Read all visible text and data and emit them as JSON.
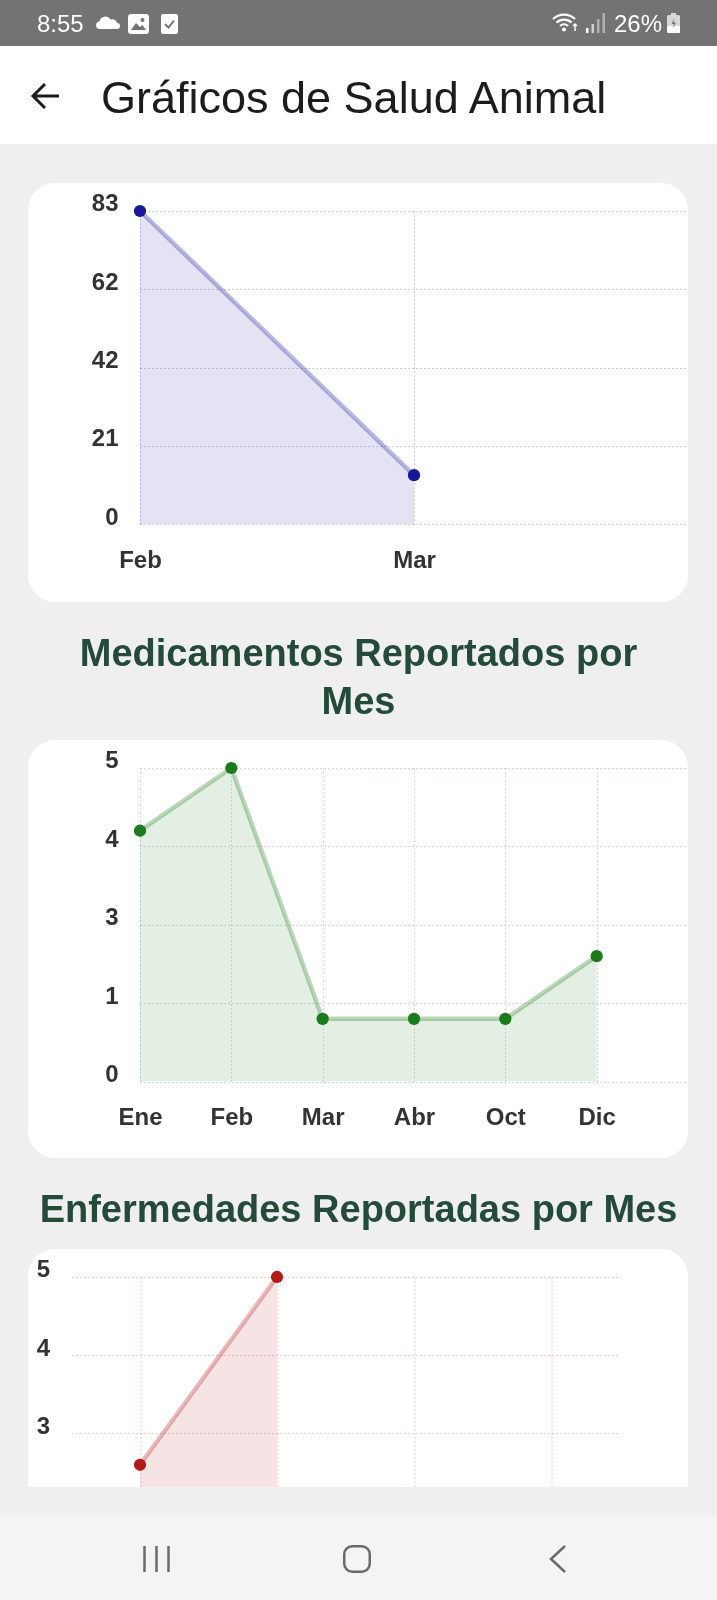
{
  "chart_data": [
    {
      "type": "area",
      "title": "Gráficos de Salud Animal",
      "annotations": [
        "8:55",
        "26%"
      ],
      "categories": [
        "Feb",
        "Mar"
      ],
      "series": [
        {
          "color": "#17179a",
          "values": [
            83,
            13
          ]
        }
      ],
      "ylim": [
        0,
        83
      ],
      "yticks": [
        0,
        {
          "value": 20.75,
          "label": "21"
        },
        {
          "value": 41.5,
          "label": "42"
        },
        {
          "value": 62.25,
          "label": "62"
        },
        83
      ],
      "grid": true,
      "marker": "circle"
    },
    {
      "type": "area",
      "title": "Medicamentos Reportados por Mes",
      "categories": [
        "Ene",
        "Feb",
        "Mar",
        "Abr",
        "Oct",
        "Dic"
      ],
      "series": [
        {
          "color": "#1b7a1b",
          "values": [
            4,
            5,
            1,
            1,
            1,
            2
          ]
        }
      ],
      "ylim": [
        0,
        5
      ],
      "yticks": [
        0,
        {
          "value": 1.25,
          "label": "1"
        },
        {
          "value": 2.5,
          "label": "3"
        },
        {
          "value": 3.75,
          "label": "4"
        },
        5
      ],
      "grid": true,
      "marker": "circle"
    },
    {
      "type": "area",
      "title": "Enfermedades Reportadas por Mes",
      "categories": [
        null,
        null,
        null,
        null
      ],
      "series": [
        {
          "color": "#b31b1b",
          "values": [
            2,
            5,
            null,
            null
          ]
        }
      ],
      "ylim": [
        1.64,
        5
      ],
      "yticks": [
        {
          "value": 2.5,
          "label": "3"
        },
        {
          "value": 3.75,
          "label": "4"
        },
        5
      ],
      "grid": true,
      "marker": "circle",
      "tick_labels": "y"
    }
  ]
}
